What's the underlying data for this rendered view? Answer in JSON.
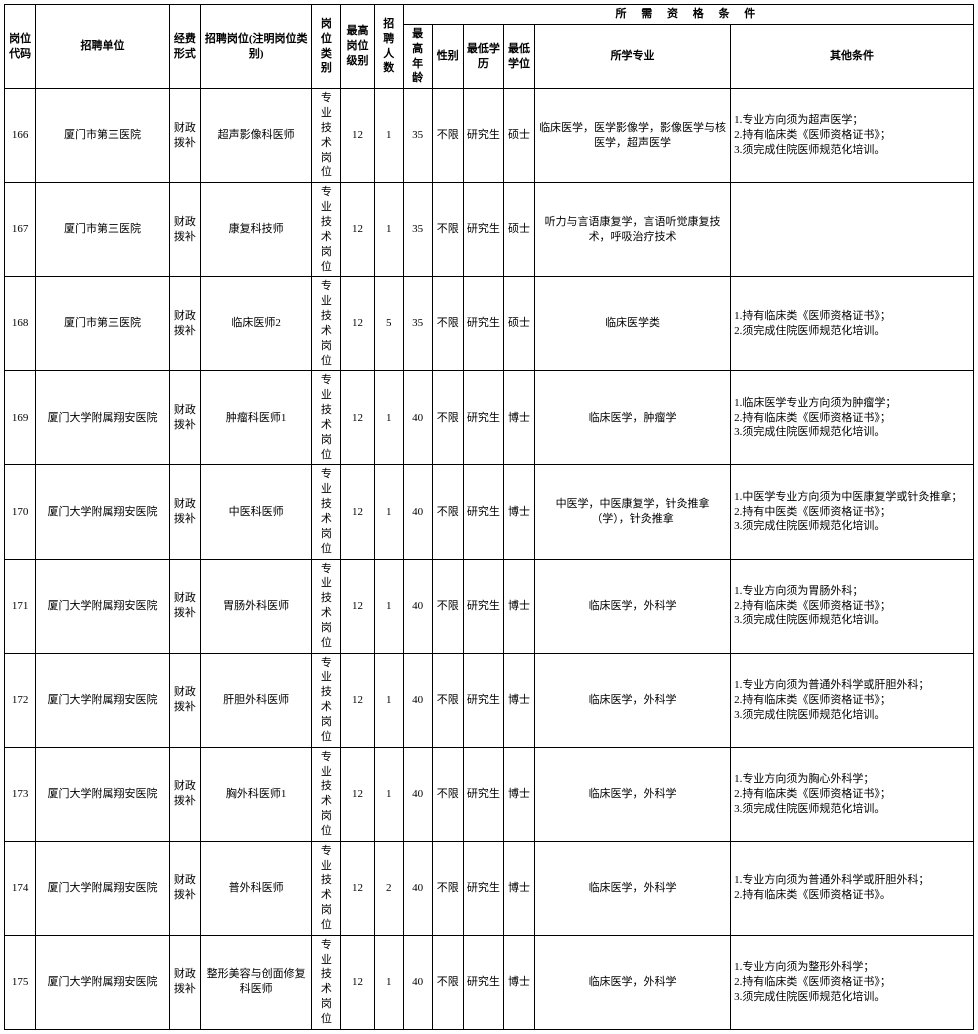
{
  "headers": {
    "group": "所 需 资 格 条 件",
    "code": "岗位代码",
    "unit": "招聘单位",
    "fund": "经费形式",
    "position": "招聘岗位(注明岗位类别)",
    "category": "岗位类别",
    "level": "最高岗位级别",
    "num": "招聘人数",
    "age": "最高年龄",
    "sex": "性别",
    "edu": "最低学历",
    "degree": "最低学位",
    "major": "所学专业",
    "other": "其他条件"
  },
  "rows": [
    {
      "code": "166",
      "unit": "厦门市第三医院",
      "fund": "财政拨补",
      "position": "超声影像科医师",
      "category": "专业技术岗位",
      "level": "12",
      "num": "1",
      "age": "35",
      "sex": "不限",
      "edu": "研究生",
      "degree": "硕士",
      "major": "临床医学，医学影像学，影像医学与核医学，超声医学",
      "other": "1.专业方向须为超声医学；\n2.持有临床类《医师资格证书》；\n3.须完成住院医师规范化培训。"
    },
    {
      "code": "167",
      "unit": "厦门市第三医院",
      "fund": "财政拨补",
      "position": "康复科技师",
      "category": "专业技术岗位",
      "level": "12",
      "num": "1",
      "age": "35",
      "sex": "不限",
      "edu": "研究生",
      "degree": "硕士",
      "major": "听力与言语康复学，言语听觉康复技术，呼吸治疗技术",
      "other": ""
    },
    {
      "code": "168",
      "unit": "厦门市第三医院",
      "fund": "财政拨补",
      "position": "临床医师2",
      "category": "专业技术岗位",
      "level": "12",
      "num": "5",
      "age": "35",
      "sex": "不限",
      "edu": "研究生",
      "degree": "硕士",
      "major": "临床医学类",
      "other": "1.持有临床类《医师资格证书》；\n2.须完成住院医师规范化培训。"
    },
    {
      "code": "169",
      "unit": "厦门大学附属翔安医院",
      "fund": "财政拨补",
      "position": "肿瘤科医师1",
      "category": "专业技术岗位",
      "level": "12",
      "num": "1",
      "age": "40",
      "sex": "不限",
      "edu": "研究生",
      "degree": "博士",
      "major": "临床医学，肿瘤学",
      "other": "1.临床医学专业方向须为肿瘤学；\n2.持有临床类《医师资格证书》；\n3.须完成住院医师规范化培训。"
    },
    {
      "code": "170",
      "unit": "厦门大学附属翔安医院",
      "fund": "财政拨补",
      "position": "中医科医师",
      "category": "专业技术岗位",
      "level": "12",
      "num": "1",
      "age": "40",
      "sex": "不限",
      "edu": "研究生",
      "degree": "博士",
      "major": "中医学，中医康复学，针灸推拿（学），针灸推拿",
      "other": "1.中医学专业方向须为中医康复学或针灸推拿；\n2.持有中医类《医师资格证书》；\n3.须完成住院医师规范化培训。"
    },
    {
      "code": "171",
      "unit": "厦门大学附属翔安医院",
      "fund": "财政拨补",
      "position": "胃肠外科医师",
      "category": "专业技术岗位",
      "level": "12",
      "num": "1",
      "age": "40",
      "sex": "不限",
      "edu": "研究生",
      "degree": "博士",
      "major": "临床医学，外科学",
      "other": "1.专业方向须为胃肠外科；\n2.持有临床类《医师资格证书》；\n3.须完成住院医师规范化培训。"
    },
    {
      "code": "172",
      "unit": "厦门大学附属翔安医院",
      "fund": "财政拨补",
      "position": "肝胆外科医师",
      "category": "专业技术岗位",
      "level": "12",
      "num": "1",
      "age": "40",
      "sex": "不限",
      "edu": "研究生",
      "degree": "博士",
      "major": "临床医学，外科学",
      "other": "1.专业方向须为普通外科学或肝胆外科；\n2.持有临床类《医师资格证书》；\n3.须完成住院医师规范化培训。"
    },
    {
      "code": "173",
      "unit": "厦门大学附属翔安医院",
      "fund": "财政拨补",
      "position": "胸外科医师1",
      "category": "专业技术岗位",
      "level": "12",
      "num": "1",
      "age": "40",
      "sex": "不限",
      "edu": "研究生",
      "degree": "博士",
      "major": "临床医学，外科学",
      "other": "1.专业方向须为胸心外科学；\n2.持有临床类《医师资格证书》；\n3.须完成住院医师规范化培训。"
    },
    {
      "code": "174",
      "unit": "厦门大学附属翔安医院",
      "fund": "财政拨补",
      "position": "普外科医师",
      "category": "专业技术岗位",
      "level": "12",
      "num": "2",
      "age": "40",
      "sex": "不限",
      "edu": "研究生",
      "degree": "博士",
      "major": "临床医学，外科学",
      "other": "1.专业方向须为普通外科学或肝胆外科；\n2.持有临床类《医师资格证书》。"
    },
    {
      "code": "175",
      "unit": "厦门大学附属翔安医院",
      "fund": "财政拨补",
      "position": "整形美容与创面修复科医师",
      "category": "专业技术岗位",
      "level": "12",
      "num": "1",
      "age": "40",
      "sex": "不限",
      "edu": "研究生",
      "degree": "博士",
      "major": "临床医学，外科学",
      "other": "1.专业方向须为整形外科学；\n2.持有临床类《医师资格证书》；\n3.须完成住院医师规范化培训。"
    }
  ]
}
